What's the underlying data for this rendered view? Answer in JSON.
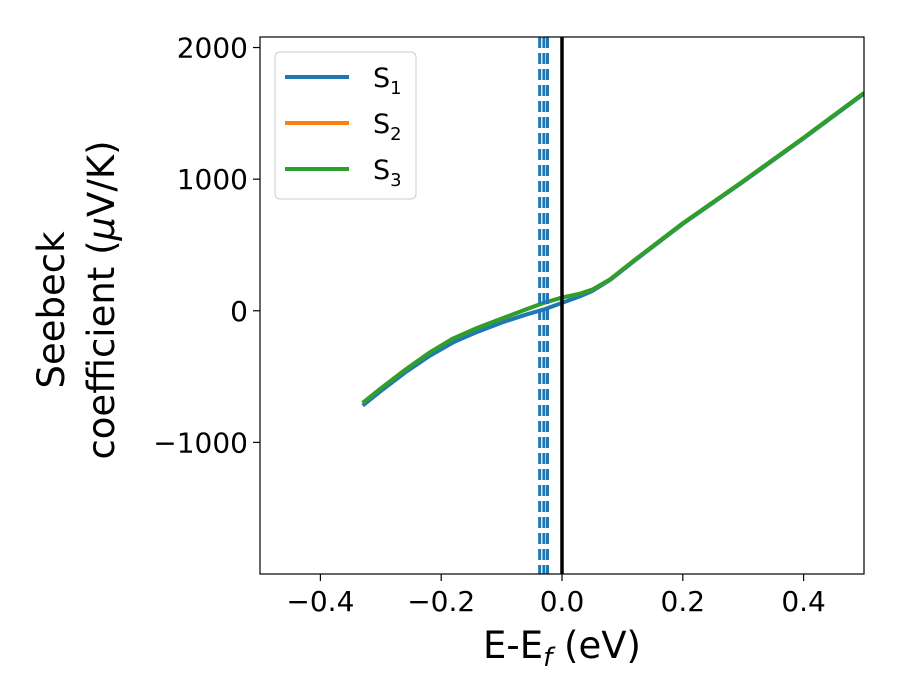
{
  "chart_data": {
    "type": "line",
    "xlabel_main": "E-E",
    "xlabel_sub": "f",
    "xlabel_unit": " (eV)",
    "ylabel_line1": "Seebeck",
    "ylabel_line2_text": "coefficient  (",
    "ylabel_line2_mu": "μ",
    "ylabel_line2_unit": "V/K)",
    "xlim": [
      -0.5,
      0.5
    ],
    "ylim": [
      -2000,
      2080
    ],
    "xticks": [
      {
        "value": -0.4,
        "label": "−0.4"
      },
      {
        "value": -0.2,
        "label": "−0.2"
      },
      {
        "value": 0.0,
        "label": "0.0"
      },
      {
        "value": 0.2,
        "label": "0.2"
      },
      {
        "value": 0.4,
        "label": "0.4"
      }
    ],
    "yticks": [
      {
        "value": -1000,
        "label": "−1000"
      },
      {
        "value": 0,
        "label": "0"
      },
      {
        "value": 1000,
        "label": "1000"
      },
      {
        "value": 2000,
        "label": "2000"
      }
    ],
    "grid": false,
    "legend_position": "top-left",
    "series": [
      {
        "name": "S",
        "sub": "1",
        "color": "#1f77b4",
        "x": [
          -0.33,
          -0.3,
          -0.26,
          -0.22,
          -0.18,
          -0.14,
          -0.1,
          -0.06,
          -0.03,
          0.0,
          0.03,
          0.05,
          0.08,
          0.12,
          0.2,
          0.3,
          0.4,
          0.5
        ],
        "y": [
          -720,
          -610,
          -470,
          -345,
          -240,
          -160,
          -90,
          -30,
          10,
          60,
          110,
          150,
          235,
          380,
          660,
          980,
          1310,
          1650
        ]
      },
      {
        "name": "S",
        "sub": "2",
        "color": "#ff7f0e",
        "x": [
          -0.33,
          -0.3,
          -0.26,
          -0.22,
          -0.18,
          -0.14,
          -0.1,
          -0.06,
          -0.03,
          0.0,
          0.03,
          0.05,
          0.08,
          0.12,
          0.2,
          0.3,
          0.4,
          0.5
        ],
        "y": [
          -700,
          -590,
          -450,
          -320,
          -210,
          -130,
          -60,
          10,
          60,
          100,
          130,
          160,
          240,
          385,
          665,
          985,
          1315,
          1655
        ]
      },
      {
        "name": "S",
        "sub": "3",
        "color": "#2ca02c",
        "x": [
          -0.33,
          -0.3,
          -0.26,
          -0.22,
          -0.18,
          -0.14,
          -0.1,
          -0.06,
          -0.03,
          0.0,
          0.03,
          0.05,
          0.08,
          0.12,
          0.2,
          0.3,
          0.4,
          0.5
        ],
        "y": [
          -700,
          -590,
          -450,
          -320,
          -210,
          -130,
          -60,
          10,
          60,
          100,
          130,
          160,
          240,
          385,
          665,
          985,
          1315,
          1655
        ]
      }
    ],
    "vertical_lines": [
      {
        "x": -0.037,
        "color": "#1f77b4",
        "style": "dashed"
      },
      {
        "x": -0.03,
        "color": "#1f77b4",
        "style": "dashed"
      },
      {
        "x": -0.024,
        "color": "#1f77b4",
        "style": "dashed"
      },
      {
        "x": 0.0,
        "color": "#000000",
        "style": "solid"
      }
    ]
  }
}
